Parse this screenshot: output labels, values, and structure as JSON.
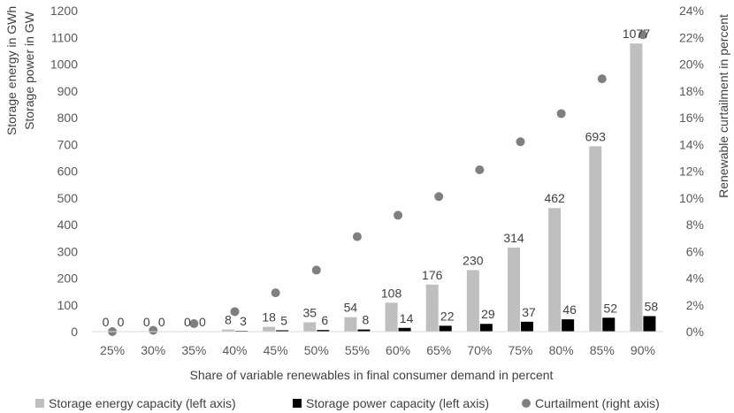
{
  "chart_data": {
    "type": "bar",
    "xlabel": "Share of variable renewables in final consumer demand in percent",
    "ylabel_left_line1": "Storage energy in GWh",
    "ylabel_left_line2": "Storage power in GW",
    "ylabel_right": "Renewable curtailment in percent",
    "categories": [
      "25%",
      "30%",
      "35%",
      "40%",
      "45%",
      "50%",
      "55%",
      "60%",
      "65%",
      "70%",
      "75%",
      "80%",
      "85%",
      "90%"
    ],
    "ylim_left": [
      0,
      1200
    ],
    "yticks_left": [
      "0",
      "100",
      "200",
      "300",
      "400",
      "500",
      "600",
      "700",
      "800",
      "900",
      "1000",
      "1100",
      "1200"
    ],
    "ylim_right": [
      0,
      24
    ],
    "yticks_right": [
      "0%",
      "2%",
      "4%",
      "6%",
      "8%",
      "10%",
      "12%",
      "14%",
      "16%",
      "18%",
      "20%",
      "22%",
      "24%"
    ],
    "grid": false,
    "legend_position": "bottom",
    "series": [
      {
        "name": "Storage energy capacity (left axis)",
        "kind": "bar",
        "axis": "left",
        "color": "#bfbfbf",
        "values": [
          0,
          0,
          0,
          8,
          18,
          35,
          54,
          108,
          176,
          230,
          314,
          462,
          693,
          1077
        ]
      },
      {
        "name": "Storage power capacity (left axis)",
        "kind": "bar",
        "axis": "left",
        "color": "#000000",
        "values": [
          0,
          0,
          0,
          3,
          5,
          6,
          8,
          14,
          22,
          29,
          37,
          46,
          52,
          58
        ]
      },
      {
        "name": "Curtailment (right axis)",
        "kind": "scatter",
        "axis": "right",
        "color": "#7f7f7f",
        "values": [
          0.0,
          0.1,
          0.6,
          1.5,
          2.9,
          4.6,
          7.1,
          8.7,
          10.1,
          12.1,
          14.2,
          16.3,
          18.9,
          22.2
        ]
      }
    ]
  }
}
